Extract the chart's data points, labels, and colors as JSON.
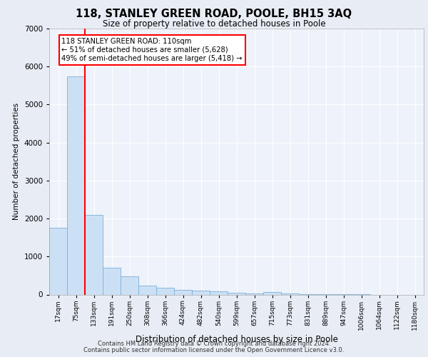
{
  "title_line1": "118, STANLEY GREEN ROAD, POOLE, BH15 3AQ",
  "title_line2": "Size of property relative to detached houses in Poole",
  "xlabel": "Distribution of detached houses by size in Poole",
  "ylabel": "Number of detached properties",
  "footer_line1": "Contains HM Land Registry data © Crown copyright and database right 2024.",
  "footer_line2": "Contains public sector information licensed under the Open Government Licence v3.0.",
  "categories": [
    "17sqm",
    "75sqm",
    "133sqm",
    "191sqm",
    "250sqm",
    "308sqm",
    "366sqm",
    "424sqm",
    "482sqm",
    "540sqm",
    "599sqm",
    "657sqm",
    "715sqm",
    "773sqm",
    "831sqm",
    "889sqm",
    "947sqm",
    "1006sqm",
    "1064sqm",
    "1122sqm",
    "1180sqm"
  ],
  "values": [
    1750,
    5750,
    2100,
    700,
    480,
    240,
    180,
    120,
    100,
    80,
    50,
    30,
    70,
    20,
    10,
    5,
    5,
    5,
    0,
    0,
    0
  ],
  "bar_color": "#cce0f5",
  "bar_edge_color": "#7ab0d8",
  "red_line_x": 1.5,
  "property_label": "118 STANLEY GREEN ROAD: 110sqm",
  "pct_smaller": 51,
  "count_smaller": 5628,
  "pct_larger": 49,
  "count_larger": 5418,
  "ylim": [
    0,
    7000
  ],
  "yticks": [
    0,
    1000,
    2000,
    3000,
    4000,
    5000,
    6000,
    7000
  ],
  "annotation_box_color": "white",
  "annotation_box_edge_color": "red",
  "background_color": "#e8edf5",
  "axes_bg_color": "#eef2fa"
}
